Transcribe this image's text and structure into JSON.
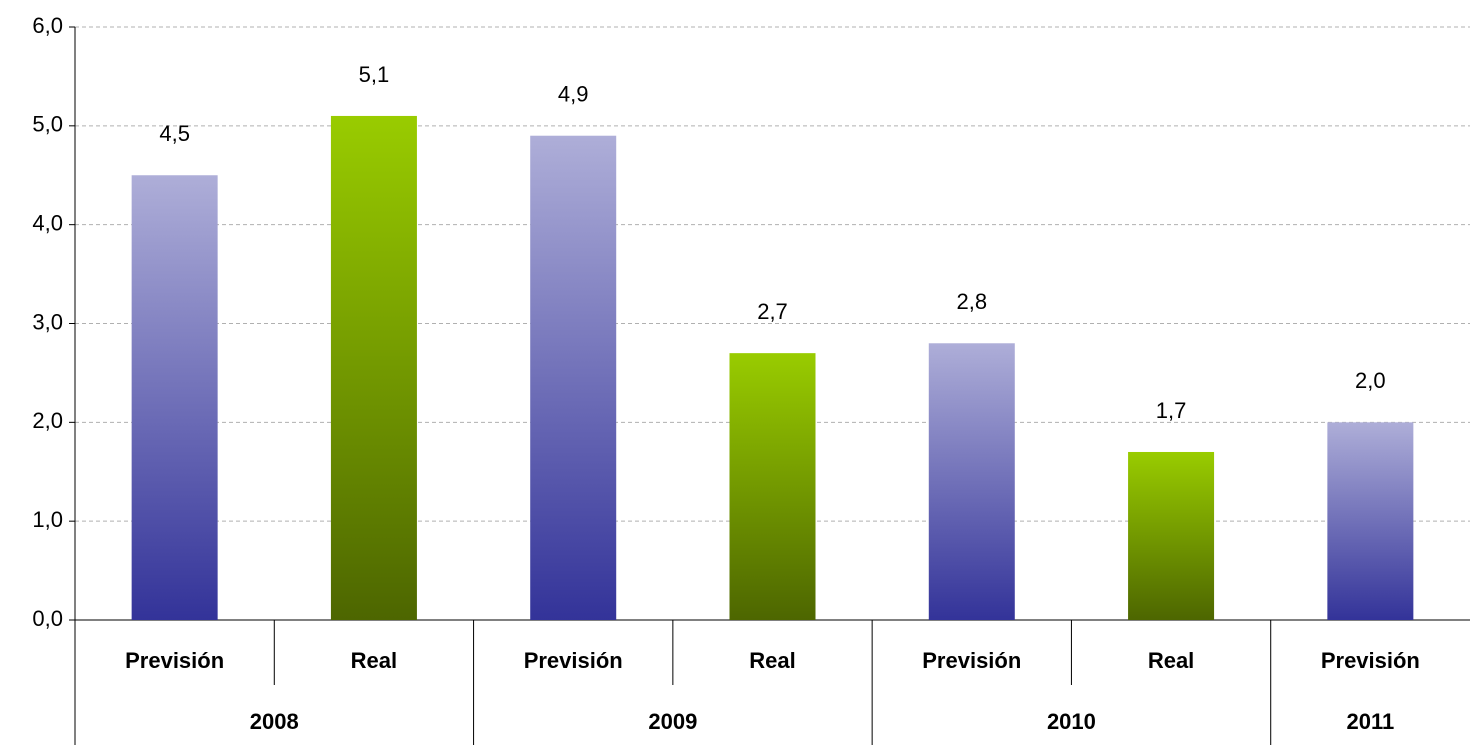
{
  "chart_data": {
    "type": "bar",
    "categories": [
      "Previsión",
      "Real",
      "Previsión",
      "Real",
      "Previsión",
      "Real",
      "Previsión"
    ],
    "groups": [
      {
        "label": "2008",
        "span": 2
      },
      {
        "label": "2009",
        "span": 2
      },
      {
        "label": "2010",
        "span": 2
      },
      {
        "label": "2011",
        "span": 1
      }
    ],
    "values": [
      4.5,
      5.1,
      4.9,
      2.7,
      2.8,
      1.7,
      2.0
    ],
    "value_labels": [
      "4,5",
      "5,1",
      "4,9",
      "2,7",
      "2,8",
      "1,7",
      "2,0"
    ],
    "colors": [
      [
        "#aeaed8",
        "#333399"
      ],
      [
        "#99cc00",
        "#4d6600"
      ],
      [
        "#aeaed8",
        "#333399"
      ],
      [
        "#99cc00",
        "#4d6600"
      ],
      [
        "#aeaed8",
        "#333399"
      ],
      [
        "#99cc00",
        "#4d6600"
      ],
      [
        "#aeaed8",
        "#333399"
      ]
    ],
    "ylim": [
      0,
      6
    ],
    "yticks": [
      {
        "value": 0,
        "label": "0,0"
      },
      {
        "value": 1,
        "label": "1,0"
      },
      {
        "value": 2,
        "label": "2,0"
      },
      {
        "value": 3,
        "label": "3,0"
      },
      {
        "value": 4,
        "label": "4,0"
      },
      {
        "value": 5,
        "label": "5,0"
      },
      {
        "value": 6,
        "label": "6,0"
      }
    ],
    "grid": true
  }
}
